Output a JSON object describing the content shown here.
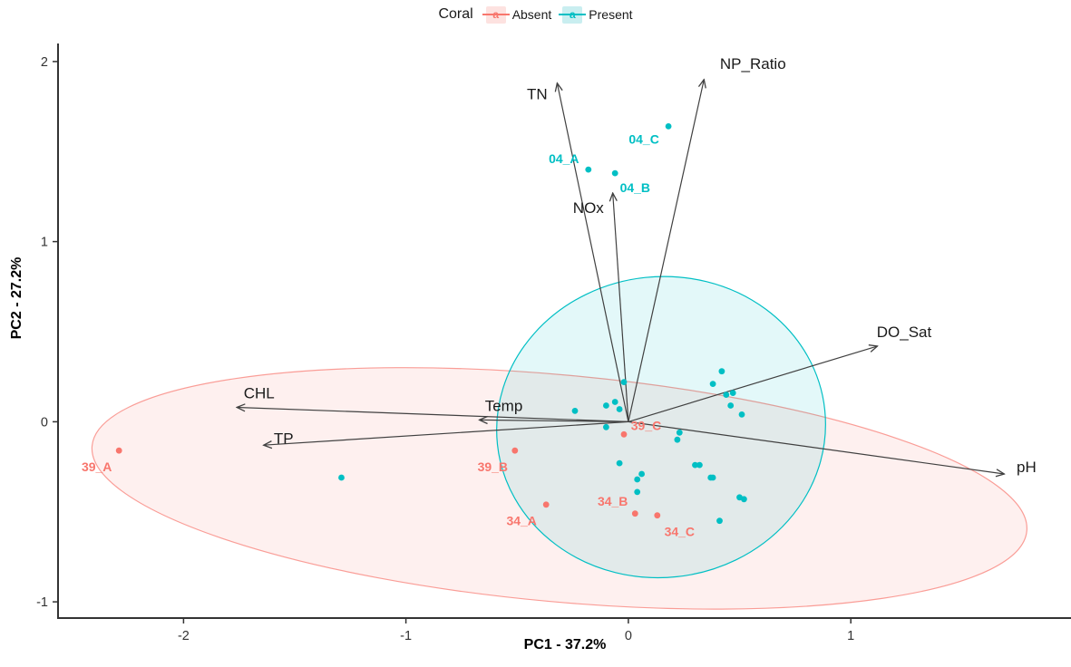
{
  "legend": {
    "title": "Coral",
    "items": [
      {
        "label": "Absent",
        "color": "#F8766D",
        "key_bg": "#FDE2E0"
      },
      {
        "label": "Present",
        "color": "#00BFC4",
        "key_bg": "#C9EEF0"
      }
    ]
  },
  "chart_data": {
    "type": "scatter",
    "title": "",
    "xlabel": "PC1 - 37.2%",
    "ylabel": "PC2 - 27.2%",
    "xlim": [
      -2.56,
      1.99
    ],
    "ylim": [
      -1.09,
      2.1
    ],
    "x_ticks": [
      -2,
      -1,
      0,
      1
    ],
    "y_ticks": [
      -1,
      0,
      1,
      2
    ],
    "grid": false,
    "legend_position": "top",
    "axis_color": "#333333",
    "arrow_color": "#404040",
    "series": [
      {
        "name": "Absent",
        "color": "#F8766D",
        "labeled_points": [
          {
            "label": "39_A",
            "x": -2.29,
            "y": -0.16,
            "lx": -2.39,
            "ly": -0.25
          },
          {
            "label": "39_B",
            "x": -0.51,
            "y": -0.16,
            "lx": -0.61,
            "ly": -0.25
          },
          {
            "label": "39_C",
            "x": -0.02,
            "y": -0.07,
            "lx": 0.08,
            "ly": -0.02
          },
          {
            "label": "34_A",
            "x": -0.37,
            "y": -0.46,
            "lx": -0.48,
            "ly": -0.55
          },
          {
            "label": "34_B",
            "x": 0.03,
            "y": -0.51,
            "lx": -0.07,
            "ly": -0.44
          },
          {
            "label": "34_C",
            "x": 0.13,
            "y": -0.52,
            "lx": 0.23,
            "ly": -0.61
          }
        ],
        "points": [],
        "ellipse": {
          "cx": -0.31,
          "cy": -0.37,
          "rx": 2.11,
          "ry": 0.63,
          "angle": 5.2
        }
      },
      {
        "name": "Present",
        "color": "#00BFC4",
        "labeled_points": [
          {
            "label": "04_A",
            "x": -0.18,
            "y": 1.4,
            "lx": -0.29,
            "ly": 1.46
          },
          {
            "label": "04_B",
            "x": -0.06,
            "y": 1.38,
            "lx": 0.03,
            "ly": 1.3
          },
          {
            "label": "04_C",
            "x": 0.18,
            "y": 1.64,
            "lx": 0.07,
            "ly": 1.57
          }
        ],
        "points": [
          [
            -1.29,
            -0.31
          ],
          [
            -0.24,
            0.06
          ],
          [
            -0.1,
            0.09
          ],
          [
            -0.06,
            0.11
          ],
          [
            -0.04,
            0.07
          ],
          [
            -0.1,
            -0.03
          ],
          [
            -0.02,
            0.22
          ],
          [
            0.23,
            -0.06
          ],
          [
            0.22,
            -0.1
          ],
          [
            -0.04,
            -0.23
          ],
          [
            0.06,
            -0.29
          ],
          [
            0.04,
            -0.32
          ],
          [
            0.04,
            -0.39
          ],
          [
            0.3,
            -0.24
          ],
          [
            0.32,
            -0.24
          ],
          [
            0.37,
            -0.31
          ],
          [
            0.38,
            -0.31
          ],
          [
            0.5,
            -0.42
          ],
          [
            0.52,
            -0.43
          ],
          [
            0.41,
            -0.55
          ],
          [
            0.42,
            0.28
          ],
          [
            0.38,
            0.21
          ],
          [
            0.44,
            0.15
          ],
          [
            0.47,
            0.16
          ],
          [
            0.46,
            0.09
          ],
          [
            0.51,
            0.04
          ]
        ],
        "ellipse": {
          "cx": 0.147,
          "cy": -0.03,
          "rx": 0.74,
          "ry": 0.835,
          "angle": -6
        }
      }
    ],
    "arrows": [
      {
        "label": "TN",
        "x": -0.32,
        "y": 1.88,
        "lx": -0.41,
        "ly": 1.82
      },
      {
        "label": "NOx",
        "x": -0.07,
        "y": 1.27,
        "lx": -0.18,
        "ly": 1.19
      },
      {
        "label": "NP_Ratio",
        "x": 0.34,
        "y": 1.9,
        "lx": 0.56,
        "ly": 1.99
      },
      {
        "label": "DO_Sat",
        "x": 1.12,
        "y": 0.42,
        "lx": 1.24,
        "ly": 0.5
      },
      {
        "label": "pH",
        "x": 1.69,
        "y": -0.29,
        "lx": 1.79,
        "ly": -0.25
      },
      {
        "label": "CHL",
        "x": -1.76,
        "y": 0.08,
        "lx": -1.66,
        "ly": 0.16
      },
      {
        "label": "Temp",
        "x": -0.67,
        "y": 0.01,
        "lx": -0.56,
        "ly": 0.09
      },
      {
        "label": "TP",
        "x": -1.64,
        "y": -0.13,
        "lx": -1.55,
        "ly": -0.09
      }
    ]
  }
}
